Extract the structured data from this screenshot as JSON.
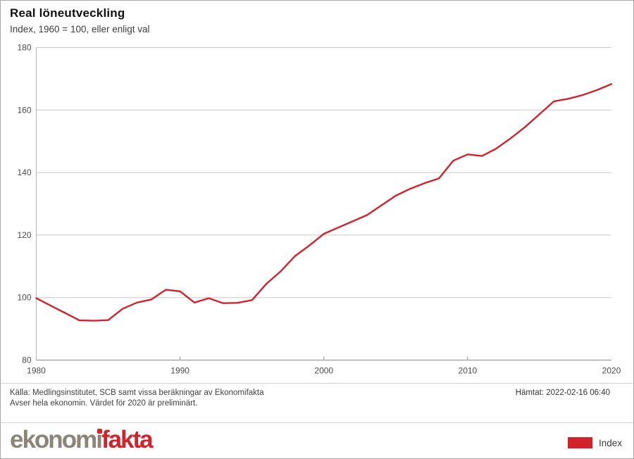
{
  "header": {
    "title": "Real löneutveckling",
    "subtitle": "Index, 1960 = 100, eller enligt val"
  },
  "footer": {
    "source_line1": "Källa: Medlingsinstitutet, SCB samt vissa beräkningar av Ekonomifakta",
    "source_line2": "Avser hela ekonomin. Värdet för 2020 är preliminärt.",
    "fetched": "Hämtat: 2022-02-16 06:40"
  },
  "branding": {
    "logo_gray_part": "ekonom",
    "logo_i_part": "i",
    "logo_red_part": "fakta"
  },
  "legend": {
    "label": "Index",
    "swatch_color": "#d0232b"
  },
  "colors": {
    "line": "#d0232b",
    "gridline": "#c9c9c9",
    "axis": "#8c8c8c",
    "left_axis": "#b3b3b3",
    "tick_label": "#4a4a4a"
  },
  "chart_data": {
    "type": "line",
    "title": "Real löneutveckling",
    "subtitle": "Index, 1960 = 100, eller enligt val",
    "xlabel": "",
    "ylabel": "",
    "xlim": [
      1980,
      2020
    ],
    "ylim": [
      80,
      180
    ],
    "xticks": [
      1980,
      1990,
      2000,
      2010,
      2020
    ],
    "yticks": [
      80,
      100,
      120,
      140,
      160,
      180
    ],
    "grid": "horizontal",
    "legend_position": "bottom-right",
    "x": [
      1980,
      1981,
      1982,
      1983,
      1984,
      1985,
      1986,
      1987,
      1988,
      1989,
      1990,
      1991,
      1992,
      1993,
      1994,
      1995,
      1996,
      1997,
      1998,
      1999,
      2000,
      2001,
      2002,
      2003,
      2004,
      2005,
      2006,
      2007,
      2008,
      2009,
      2010,
      2011,
      2012,
      2013,
      2014,
      2015,
      2016,
      2017,
      2018,
      2019,
      2020
    ],
    "series": [
      {
        "name": "Index",
        "color": "#d0232b",
        "values": [
          99.8,
          97.4,
          95.1,
          92.7,
          92.6,
          92.8,
          96.4,
          98.4,
          99.4,
          102.5,
          102.0,
          98.4,
          99.8,
          98.2,
          98.3,
          99.2,
          104.4,
          108.4,
          113.3,
          116.7,
          120.4,
          122.4,
          124.4,
          126.4,
          129.5,
          132.6,
          134.8,
          136.6,
          138.1,
          143.8,
          145.8,
          145.3,
          147.7,
          151.0,
          154.6,
          158.7,
          162.8,
          163.6,
          164.8,
          166.4,
          168.3
        ]
      }
    ]
  }
}
